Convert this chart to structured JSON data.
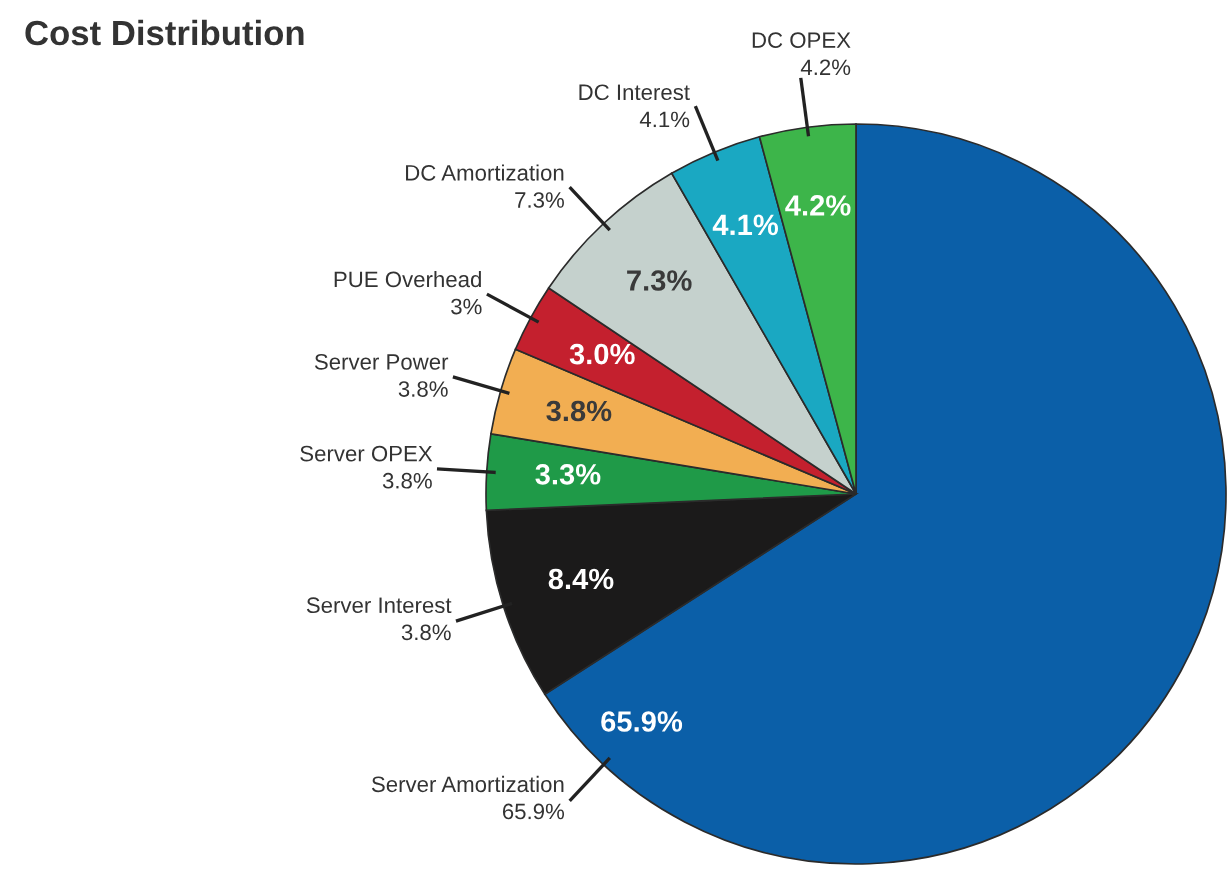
{
  "chart_data": {
    "type": "pie",
    "title": "Cost Distribution",
    "categories": [
      "Server Amortization",
      "Server Interest",
      "Server OPEX",
      "Server Power",
      "PUE Overhead",
      "DC Amortization",
      "DC Interest",
      "DC OPEX"
    ],
    "values": [
      65.9,
      8.4,
      3.3,
      3.8,
      3.0,
      7.3,
      4.1,
      4.2
    ],
    "value_labels": [
      "65.9%",
      "8.4%",
      "3.3%",
      "3.8%",
      "3.0%",
      "7.3%",
      "4.1%",
      "4.2%"
    ],
    "colors": [
      "#0b5fa8",
      "#1b1a1a",
      "#1f9a48",
      "#f2ae52",
      "#c4202e",
      "#c5d1cd",
      "#1aa8c2",
      "#3db54a"
    ],
    "annotations": [
      {
        "text": "65.9%",
        "x": "Server Amortization"
      },
      {
        "text": "3.8%",
        "x": "Server Interest"
      },
      {
        "text": "3.8%",
        "x": "Server OPEX"
      },
      {
        "text": "3.8%",
        "x": "Server Power"
      },
      {
        "text": "3%",
        "x": "PUE Overhead"
      },
      {
        "text": "7.3%",
        "x": "DC Amortization"
      },
      {
        "text": "4.1%",
        "x": "DC Interest"
      },
      {
        "text": "4.2%",
        "x": "DC OPEX"
      }
    ]
  }
}
